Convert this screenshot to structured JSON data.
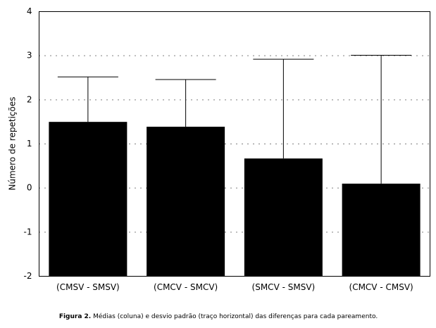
{
  "chart_data": {
    "type": "bar",
    "y_label": "Número de repetições",
    "categories": [
      "(CMSV - SMSV)",
      "(CMCV - SMCV)",
      "(SMCV - SMSV)",
      "(CMCV - CMSV)"
    ],
    "values": [
      1.5,
      1.39,
      0.67,
      0.1
    ],
    "errors": [
      1.02,
      1.07,
      2.25,
      2.91
    ],
    "color": "#000000",
    "ylim": [
      -2,
      4
    ],
    "yticks": [
      -2,
      -1,
      0,
      1,
      2,
      3,
      4
    ],
    "grid": true
  },
  "caption": {
    "label": "Figura 2.",
    "text": "Médias (coluna) e desvio padrão (traço horizontal) das diferenças para cada pareamento."
  }
}
